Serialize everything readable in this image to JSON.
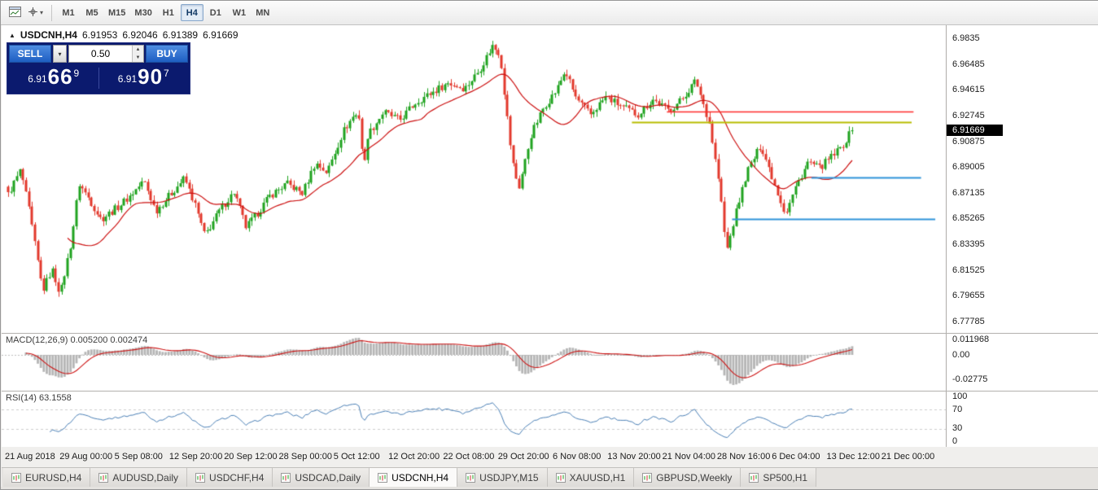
{
  "toolbar": {
    "timeframes": [
      "M1",
      "M5",
      "M15",
      "M30",
      "H1",
      "H4",
      "D1",
      "W1",
      "MN"
    ],
    "active_timeframe": "H4"
  },
  "chart": {
    "collapse_icon": "▲",
    "title": "USDCNH,H4",
    "open": "6.91953",
    "high": "6.92046",
    "low": "6.91389",
    "close": "6.91669"
  },
  "trade_panel": {
    "sell_label": "SELL",
    "buy_label": "BUY",
    "volume": "0.50",
    "sell_price_prefix": "6.91",
    "sell_price_big": "66",
    "sell_price_sup": "9",
    "buy_price_prefix": "6.91",
    "buy_price_big": "90",
    "buy_price_sup": "7"
  },
  "price_scale": {
    "labels": [
      "6.9835",
      "6.96485",
      "6.94615",
      "6.92745",
      "6.90875",
      "6.89005",
      "6.87135",
      "6.85265",
      "6.83395",
      "6.81525",
      "6.79655",
      "6.77785"
    ],
    "current": "6.91669"
  },
  "macd_panel": {
    "label": "MACD(12,26,9) 0.005200 0.002474",
    "scale": [
      "0.011968",
      "0.00",
      "-0.02775"
    ]
  },
  "rsi_panel": {
    "label": "RSI(14) 63.1558",
    "scale": [
      "100",
      "70",
      "30",
      "0"
    ]
  },
  "time_axis": [
    "21 Aug 2018",
    "29 Aug 00:00",
    "5 Sep 08:00",
    "12 Sep 20:00",
    "20 Sep 12:00",
    "28 Sep 00:00",
    "5 Oct 12:00",
    "12 Oct 20:00",
    "22 Oct 08:00",
    "29 Oct 20:00",
    "6 Nov 08:00",
    "13 Nov 20:00",
    "21 Nov 04:00",
    "28 Nov 16:00",
    "6 Dec 04:00",
    "13 Dec 12:00",
    "21 Dec 00:00"
  ],
  "tabs": [
    "EURUSD,H4",
    "AUDUSD,Daily",
    "USDCHF,H4",
    "USDCAD,Daily",
    "USDCNH,H4",
    "USDJPY,M15",
    "XAUUSD,H1",
    "GBPUSD,Weekly",
    "SP500,H1"
  ],
  "active_tab": "USDCNH,H4",
  "chart_data": {
    "type": "candlestick",
    "symbol": "USDCNH",
    "timeframe": "H4",
    "last_price": 6.91669,
    "ohlc_current": {
      "open": 6.91953,
      "high": 6.92046,
      "low": 6.91389,
      "close": 6.91669
    },
    "price_axis": {
      "top": 6.9835,
      "step": 0.0187,
      "ticks": 12,
      "range": [
        6.77785,
        6.9835
      ]
    },
    "num_candles": 285,
    "close_path_anchors": [
      [
        0.0,
        6.87
      ],
      [
        0.015,
        6.888
      ],
      [
        0.025,
        6.858
      ],
      [
        0.041,
        6.8
      ],
      [
        0.052,
        6.816
      ],
      [
        0.062,
        6.798
      ],
      [
        0.075,
        6.836
      ],
      [
        0.084,
        6.878
      ],
      [
        0.095,
        6.868
      ],
      [
        0.11,
        6.852
      ],
      [
        0.128,
        6.86
      ],
      [
        0.143,
        6.868
      ],
      [
        0.161,
        6.88
      ],
      [
        0.175,
        6.858
      ],
      [
        0.192,
        6.87
      ],
      [
        0.209,
        6.882
      ],
      [
        0.222,
        6.862
      ],
      [
        0.233,
        6.84
      ],
      [
        0.252,
        6.86
      ],
      [
        0.268,
        6.872
      ],
      [
        0.282,
        6.846
      ],
      [
        0.295,
        6.856
      ],
      [
        0.31,
        6.869
      ],
      [
        0.33,
        6.878
      ],
      [
        0.349,
        6.871
      ],
      [
        0.364,
        6.893
      ],
      [
        0.378,
        6.886
      ],
      [
        0.397,
        6.916
      ],
      [
        0.41,
        6.928
      ],
      [
        0.417,
        6.926
      ],
      [
        0.421,
        6.882
      ],
      [
        0.425,
        6.912
      ],
      [
        0.445,
        6.93
      ],
      [
        0.464,
        6.924
      ],
      [
        0.483,
        6.937
      ],
      [
        0.502,
        6.944
      ],
      [
        0.521,
        6.951
      ],
      [
        0.541,
        6.947
      ],
      [
        0.558,
        6.96
      ],
      [
        0.574,
        6.978
      ],
      [
        0.583,
        6.972
      ],
      [
        0.597,
        6.896
      ],
      [
        0.605,
        6.874
      ],
      [
        0.62,
        6.914
      ],
      [
        0.635,
        6.934
      ],
      [
        0.65,
        6.946
      ],
      [
        0.66,
        6.96
      ],
      [
        0.673,
        6.94
      ],
      [
        0.69,
        6.928
      ],
      [
        0.708,
        6.941
      ],
      [
        0.727,
        6.934
      ],
      [
        0.746,
        6.928
      ],
      [
        0.764,
        6.939
      ],
      [
        0.783,
        6.931
      ],
      [
        0.798,
        6.939
      ],
      [
        0.815,
        6.953
      ],
      [
        0.831,
        6.922
      ],
      [
        0.843,
        6.876
      ],
      [
        0.851,
        6.828
      ],
      [
        0.862,
        6.856
      ],
      [
        0.875,
        6.886
      ],
      [
        0.892,
        6.906
      ],
      [
        0.908,
        6.878
      ],
      [
        0.921,
        6.856
      ],
      [
        0.935,
        6.878
      ],
      [
        0.948,
        6.894
      ],
      [
        0.961,
        6.889
      ],
      [
        0.975,
        6.897
      ],
      [
        0.987,
        6.904
      ],
      [
        1.0,
        6.9167
      ]
    ],
    "ma": {
      "type": "sma",
      "period": 21,
      "color": "#cc1111"
    },
    "colors": {
      "up": "#1fa31f",
      "down": "#e2382c",
      "macd_hist": "#b5b5b5",
      "macd_signal": "#cc1111",
      "rsi_line": "#4a7fb5"
    },
    "hlines": [
      {
        "price": 6.9303,
        "x0": 0.704,
        "x1": 0.965,
        "color": "#ff2a2a",
        "width": 1.4
      },
      {
        "price": 6.9225,
        "x0": 0.667,
        "x1": 0.963,
        "color": "#b7bd00",
        "width": 2.2
      },
      {
        "price": 6.8825,
        "x0": 0.857,
        "x1": 0.973,
        "color": "#2e93d8",
        "width": 1.8
      },
      {
        "price": 6.8525,
        "x0": 0.773,
        "x1": 0.988,
        "color": "#2e93d8",
        "width": 1.8
      }
    ],
    "macd": {
      "fast": 12,
      "slow": 26,
      "signal": 9,
      "values_shown": [
        0.0052,
        0.002474
      ],
      "scale_range": [
        -0.02775,
        0.011968
      ]
    },
    "rsi": {
      "period": 14,
      "value_shown": 63.1558,
      "levels": [
        70,
        30
      ],
      "range": [
        0,
        100
      ]
    }
  }
}
